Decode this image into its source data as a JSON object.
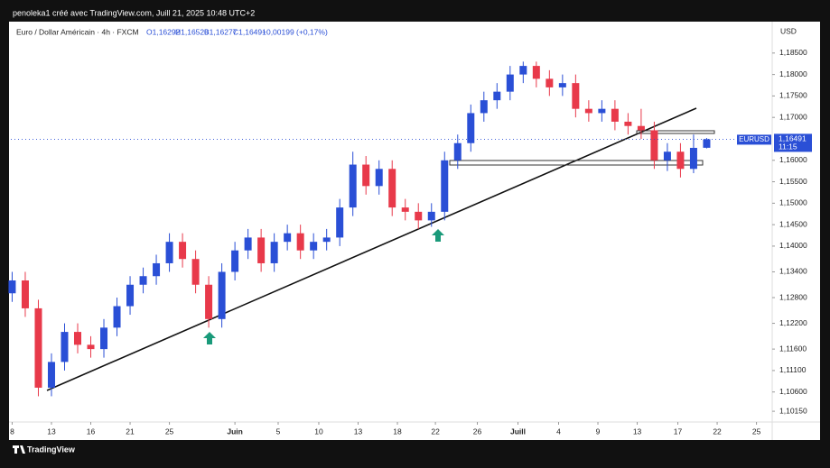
{
  "header": {
    "attribution": "penoleka1 créé avec TradingView.com, Juill 21, 2025 10:48 UTC+2"
  },
  "chart_data": {
    "type": "candlestick",
    "title": "Euro / Dollar Américain · 4h · FXCM",
    "ohlc_legend": [
      "O1,16292",
      "H1,16520",
      "B1,16277",
      "C1,16491"
    ],
    "change": "+0,00199 (+0,17%)",
    "currency": "USD",
    "up_color": "#2a4fd6",
    "down_color": "#e8394a",
    "x": [
      0,
      1,
      2,
      3,
      4,
      5,
      6,
      7,
      8,
      9,
      10,
      11,
      12,
      13,
      14,
      15,
      16,
      17,
      18,
      19,
      20,
      21,
      22,
      23,
      24,
      25,
      26,
      27,
      28,
      29,
      30,
      31,
      32,
      33,
      34,
      35,
      36,
      37,
      38,
      39,
      40,
      41,
      42,
      43,
      44,
      45,
      46,
      47,
      48,
      49,
      50,
      51,
      52,
      53
    ],
    "open": [
      1.129,
      1.132,
      1.1255,
      1.107,
      1.113,
      1.12,
      1.117,
      1.116,
      1.121,
      1.126,
      1.131,
      1.133,
      1.136,
      1.141,
      1.137,
      1.131,
      1.123,
      1.134,
      1.139,
      1.142,
      1.136,
      1.141,
      1.143,
      1.139,
      1.141,
      1.142,
      1.149,
      1.159,
      1.154,
      1.158,
      1.149,
      1.148,
      1.146,
      1.148,
      1.16,
      1.164,
      1.171,
      1.174,
      1.176,
      1.18,
      1.182,
      1.179,
      1.177,
      1.178,
      1.172,
      1.171,
      1.172,
      1.169,
      1.168,
      1.167,
      1.16,
      1.162,
      1.158,
      1.16292
    ],
    "high": [
      1.134,
      1.134,
      1.1275,
      1.115,
      1.122,
      1.122,
      1.119,
      1.123,
      1.128,
      1.133,
      1.135,
      1.138,
      1.143,
      1.143,
      1.139,
      1.133,
      1.136,
      1.141,
      1.144,
      1.144,
      1.143,
      1.145,
      1.145,
      1.143,
      1.144,
      1.151,
      1.162,
      1.161,
      1.16,
      1.16,
      1.151,
      1.15,
      1.15,
      1.162,
      1.166,
      1.173,
      1.176,
      1.178,
      1.182,
      1.183,
      1.183,
      1.181,
      1.18,
      1.18,
      1.174,
      1.174,
      1.174,
      1.171,
      1.172,
      1.169,
      1.164,
      1.164,
      1.166,
      1.1652
    ],
    "low": [
      1.127,
      1.1235,
      1.105,
      1.105,
      1.111,
      1.115,
      1.114,
      1.114,
      1.119,
      1.124,
      1.129,
      1.131,
      1.134,
      1.135,
      1.129,
      1.121,
      1.121,
      1.132,
      1.137,
      1.134,
      1.134,
      1.139,
      1.137,
      1.137,
      1.139,
      1.14,
      1.147,
      1.152,
      1.152,
      1.147,
      1.146,
      1.144,
      1.1445,
      1.146,
      1.158,
      1.162,
      1.169,
      1.172,
      1.174,
      1.178,
      1.177,
      1.175,
      1.175,
      1.17,
      1.169,
      1.169,
      1.167,
      1.166,
      1.165,
      1.158,
      1.1575,
      1.156,
      1.157,
      1.16277
    ],
    "close": [
      1.132,
      1.1255,
      1.107,
      1.113,
      1.12,
      1.117,
      1.116,
      1.121,
      1.126,
      1.131,
      1.133,
      1.136,
      1.141,
      1.137,
      1.131,
      1.123,
      1.134,
      1.139,
      1.142,
      1.136,
      1.141,
      1.143,
      1.139,
      1.141,
      1.142,
      1.149,
      1.159,
      1.154,
      1.158,
      1.149,
      1.148,
      1.146,
      1.148,
      1.16,
      1.164,
      1.171,
      1.174,
      1.176,
      1.18,
      1.182,
      1.179,
      1.177,
      1.178,
      1.172,
      1.171,
      1.172,
      1.169,
      1.168,
      1.167,
      1.16,
      1.162,
      1.158,
      1.1629,
      1.16491
    ],
    "xlim": [
      -0.1,
      58
    ],
    "ylim": [
      1.099,
      1.1919
    ],
    "xticks": [
      {
        "value": 0,
        "label": "8"
      },
      {
        "value": 3,
        "label": "13"
      },
      {
        "value": 6,
        "label": "16"
      },
      {
        "value": 9,
        "label": "21"
      },
      {
        "value": 12,
        "label": "25"
      },
      {
        "value": 17,
        "label": "Juin"
      },
      {
        "value": 20.3,
        "label": "5"
      },
      {
        "value": 23.4,
        "label": "10"
      },
      {
        "value": 26.4,
        "label": "13"
      },
      {
        "value": 29.4,
        "label": "18"
      },
      {
        "value": 32.3,
        "label": "22"
      },
      {
        "value": 35.5,
        "label": "26"
      },
      {
        "value": 38.6,
        "label": "Juill"
      },
      {
        "value": 41.7,
        "label": "4"
      },
      {
        "value": 44.7,
        "label": "9"
      },
      {
        "value": 47.7,
        "label": "13"
      },
      {
        "value": 50.8,
        "label": "17"
      },
      {
        "value": 53.8,
        "label": "22"
      },
      {
        "value": 56.8,
        "label": "25"
      }
    ],
    "yticks": [
      {
        "value": 1.185,
        "label": "1,18500"
      },
      {
        "value": 1.18,
        "label": "1,18000"
      },
      {
        "value": 1.175,
        "label": "1,17500"
      },
      {
        "value": 1.17,
        "label": "1,17000"
      },
      {
        "value": 1.16,
        "label": "1,16000"
      },
      {
        "value": 1.155,
        "label": "1,15500"
      },
      {
        "value": 1.15,
        "label": "1,15000"
      },
      {
        "value": 1.145,
        "label": "1,14500"
      },
      {
        "value": 1.14,
        "label": "1,14000"
      },
      {
        "value": 1.134,
        "label": "1,13400"
      },
      {
        "value": 1.128,
        "label": "1,12800"
      },
      {
        "value": 1.122,
        "label": "1,12200"
      },
      {
        "value": 1.116,
        "label": "1,11600"
      },
      {
        "value": 1.111,
        "label": "1,11100"
      },
      {
        "value": 1.106,
        "label": "1,10600"
      },
      {
        "value": 1.1015,
        "label": "1,10150"
      }
    ],
    "last_price": {
      "symbol": "EURUSD",
      "value": 1.16491,
      "label": "1,16491",
      "countdown": "11:15"
    }
  },
  "footer": {
    "brand": "TradingView"
  }
}
